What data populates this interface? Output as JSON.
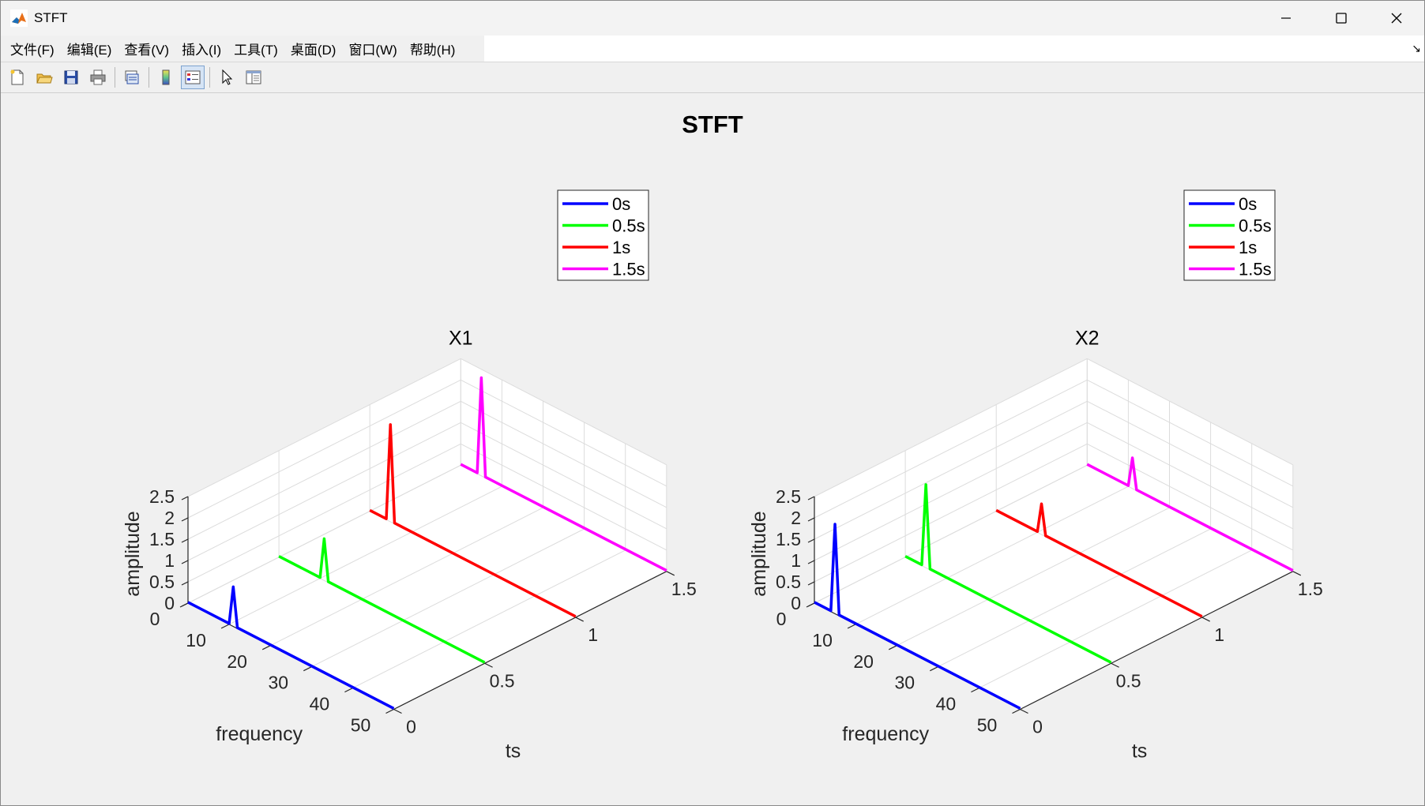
{
  "window": {
    "title": "STFT",
    "app_icon": "matlab-icon"
  },
  "menu": [
    {
      "label": "文件(F)"
    },
    {
      "label": "编辑(E)"
    },
    {
      "label": "查看(V)"
    },
    {
      "label": "插入(I)"
    },
    {
      "label": "工具(T)"
    },
    {
      "label": "桌面(D)"
    },
    {
      "label": "窗口(W)"
    },
    {
      "label": "帮助(H)"
    }
  ],
  "menu_corner_icon": "dock-arrow-icon",
  "toolbar": [
    {
      "icon": "new-figure-icon"
    },
    {
      "icon": "open-file-icon"
    },
    {
      "icon": "save-icon"
    },
    {
      "icon": "print-icon"
    },
    {
      "icon": "link-plot-icon"
    },
    {
      "icon": "insert-colorbar-icon"
    },
    {
      "icon": "insert-legend-icon",
      "active": true
    },
    {
      "icon": "edit-plot-icon"
    },
    {
      "icon": "property-inspector-icon"
    }
  ],
  "figure": {
    "title": "STFT"
  },
  "chart_data": [
    {
      "type": "line",
      "title": "X1",
      "xlabel": "frequency",
      "ylabel": "ts",
      "zlabel": "amplitude",
      "xlim": [
        0,
        50
      ],
      "ylim": [
        0,
        1.5
      ],
      "zlim": [
        0,
        2.5
      ],
      "xticks": [
        "0",
        "10",
        "20",
        "30",
        "40",
        "50"
      ],
      "yticks": [
        "0",
        "0.5",
        "1",
        "1.5"
      ],
      "zticks": [
        "0",
        "0.5",
        "1",
        "1.5",
        "2",
        "2.5"
      ],
      "grid": true,
      "legend_position": "top-right",
      "series": [
        {
          "name": "0s",
          "ts": 0,
          "color": "#0000ff",
          "x": [
            0,
            10,
            11,
            12,
            50
          ],
          "z": [
            0.02,
            0.02,
            0.93,
            0.02,
            0.02
          ]
        },
        {
          "name": "0.5s",
          "ts": 0.5,
          "color": "#00ff00",
          "x": [
            0,
            10,
            11,
            12,
            50
          ],
          "z": [
            0.02,
            0.02,
            0.98,
            0.02,
            0.02
          ]
        },
        {
          "name": "1s",
          "ts": 1,
          "color": "#ff0000",
          "x": [
            0,
            4,
            5,
            6,
            50
          ],
          "z": [
            0.02,
            0.02,
            2.28,
            0.02,
            0.02
          ]
        },
        {
          "name": "1.5s",
          "ts": 1.5,
          "color": "#ff00ff",
          "x": [
            0,
            4,
            5,
            6,
            50
          ],
          "z": [
            0.02,
            0.02,
            2.3,
            0.02,
            0.02
          ]
        }
      ]
    },
    {
      "type": "line",
      "title": "X2",
      "xlabel": "frequency",
      "ylabel": "ts",
      "zlabel": "amplitude",
      "xlim": [
        0,
        50
      ],
      "ylim": [
        0,
        1.5
      ],
      "zlim": [
        0,
        2.5
      ],
      "xticks": [
        "0",
        "10",
        "20",
        "30",
        "40",
        "50"
      ],
      "yticks": [
        "0",
        "0.5",
        "1",
        "1.5"
      ],
      "zticks": [
        "0",
        "0.5",
        "1",
        "1.5",
        "2",
        "2.5"
      ],
      "grid": true,
      "legend_position": "top-right",
      "series": [
        {
          "name": "0s",
          "ts": 0,
          "color": "#0000ff",
          "x": [
            0,
            4,
            5,
            6,
            50
          ],
          "z": [
            0.02,
            0.02,
            2.1,
            0.02,
            0.02
          ]
        },
        {
          "name": "0.5s",
          "ts": 0.5,
          "color": "#00ff00",
          "x": [
            0,
            4,
            5,
            6,
            50
          ],
          "z": [
            0.02,
            0.02,
            1.95,
            0.02,
            0.02
          ]
        },
        {
          "name": "1s",
          "ts": 1,
          "color": "#ff0000",
          "x": [
            0,
            10,
            11,
            12,
            50
          ],
          "z": [
            0.02,
            0.02,
            0.72,
            0.02,
            0.02
          ]
        },
        {
          "name": "1.5s",
          "ts": 1.5,
          "color": "#ff00ff",
          "x": [
            0,
            10,
            11,
            12,
            50
          ],
          "z": [
            0.02,
            0.02,
            0.72,
            0.02,
            0.02
          ]
        }
      ]
    }
  ]
}
